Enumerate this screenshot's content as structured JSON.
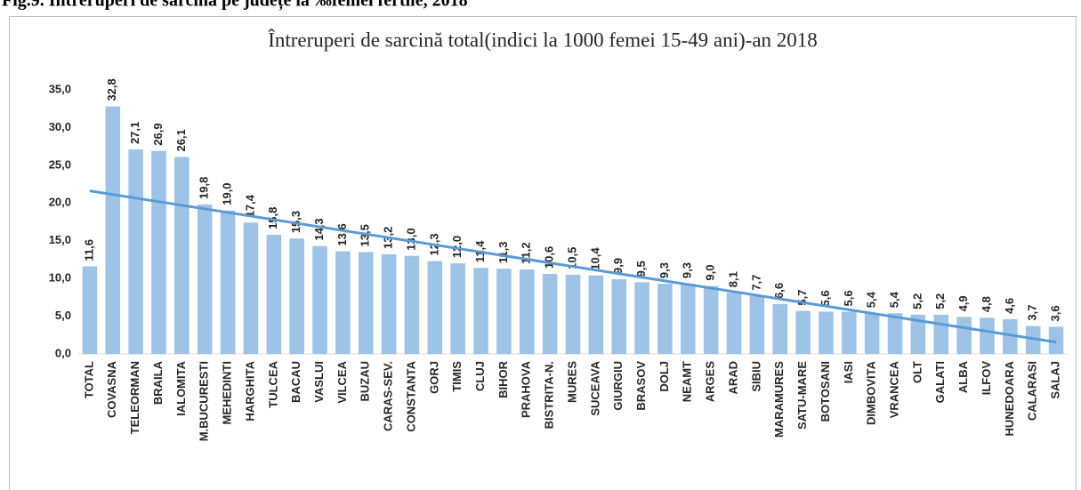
{
  "heading": "Fig.9. Întreruperi de sarcină pe județe la ‰femei fertile, 2018",
  "chart_data": {
    "type": "bar",
    "title": "Întreruperi de sarcină total(indici la 1000 femei 15-49 ani)-an 2018",
    "categories": [
      "TOTAL",
      "COVASNA",
      "TELEORMAN",
      "BRAILA",
      "IALOMITA",
      "M.BUCURESTI",
      "MEHEDINTI",
      "HARGHITA",
      "TULCEA",
      "BACAU",
      "VASLUI",
      "VILCEA",
      "BUZAU",
      "CARAS-SEV.",
      "CONSTANTA",
      "GORJ",
      "TIMIS",
      "CLUJ",
      "BIHOR",
      "PRAHOVA",
      "BISTRITA-N.",
      "MURES",
      "SUCEAVA",
      "GIURGIU",
      "BRASOV",
      "DOLJ",
      "NEAMT",
      "ARGES",
      "ARAD",
      "SIBIU",
      "MARAMURES",
      "SATU-MARE",
      "BOTOSANI",
      "IASI",
      "DIMBOVITA",
      "VRANCEA",
      "OLT",
      "GALATI",
      "ALBA",
      "ILFOV",
      "HUNEDOARA",
      "CALARASI",
      "SALAJ"
    ],
    "values": [
      11.6,
      32.8,
      27.1,
      26.9,
      26.1,
      19.8,
      19.0,
      17.4,
      15.8,
      15.3,
      14.3,
      13.6,
      13.5,
      13.2,
      13.0,
      12.3,
      12.0,
      11.4,
      11.3,
      11.2,
      10.6,
      10.5,
      10.4,
      9.9,
      9.5,
      9.3,
      9.3,
      9.0,
      8.1,
      7.7,
      6.6,
      5.7,
      5.6,
      5.6,
      5.4,
      5.4,
      5.2,
      5.2,
      4.9,
      4.8,
      4.6,
      3.7,
      3.6
    ],
    "value_labels": [
      "11,6",
      "32,8",
      "27,1",
      "26,9",
      "26,1",
      "19,8",
      "19,0",
      "17,4",
      "15,8",
      "15,3",
      "14,3",
      "13,6",
      "13,5",
      "13,2",
      "13,0",
      "12,3",
      "12,0",
      "11,4",
      "11,3",
      "11,2",
      "10,6",
      "10,5",
      "10,4",
      "9,9",
      "9,5",
      "9,3",
      "9,3",
      "9,0",
      "8,1",
      "7,7",
      "6,6",
      "5,7",
      "5,6",
      "5,6",
      "5,4",
      "5,4",
      "5,2",
      "5,2",
      "4,9",
      "4,8",
      "4,6",
      "3,7",
      "3,6"
    ],
    "color": "#9dc3e6",
    "trendline": true,
    "trendline_color": "#5b9bd5",
    "ylim": [
      0,
      35
    ],
    "yticks": [
      {
        "value": 0,
        "label": "0,0"
      },
      {
        "value": 5,
        "label": "5,0"
      },
      {
        "value": 10,
        "label": "10,0"
      },
      {
        "value": 15,
        "label": "15,0"
      },
      {
        "value": 20,
        "label": "20,0"
      },
      {
        "value": 25,
        "label": "25,0"
      },
      {
        "value": 30,
        "label": "30,0"
      },
      {
        "value": 35,
        "label": "35,0"
      }
    ]
  }
}
